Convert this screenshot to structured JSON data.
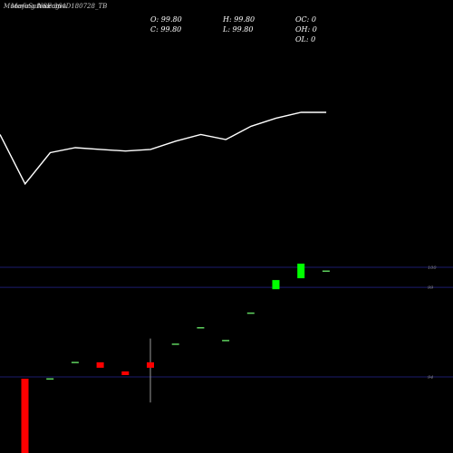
{
  "header": {
    "title_overlap": [
      "MunafaSutra.com",
      "Moving Averages",
      "NSE 364D180728_TB"
    ],
    "open": "O: 99.80",
    "high": "H: 99.80",
    "close": "C: 99.80",
    "low": "L: 99.80",
    "oc": "OC: 0",
    "oh": "OH: 0",
    "ol": "OL: 0"
  },
  "chart_data": [
    {
      "type": "line",
      "panel": "moving-average",
      "series": [
        {
          "values": [
            99.0,
            98.4,
            98.78,
            98.84,
            98.82,
            98.8,
            98.82,
            98.92,
            99.0,
            98.94,
            99.1,
            99.2,
            99.27,
            99.27
          ],
          "color": "#ffffff"
        }
      ]
    },
    {
      "type": "candlestick",
      "panel": "price",
      "y_tick_labels": [
        "100",
        "99",
        "94"
      ],
      "candles": [
        {
          "open": 93.9,
          "close": 92.0,
          "high": 93.9,
          "low": 92.0,
          "color": "red"
        },
        {
          "open": 93.9,
          "close": 93.9,
          "high": 93.9,
          "low": 93.9,
          "color": "green"
        },
        {
          "open": 94.8,
          "close": 94.8,
          "high": 94.8,
          "low": 94.8,
          "color": "green"
        },
        {
          "open": 94.8,
          "close": 94.5,
          "high": 94.8,
          "low": 94.5,
          "color": "red"
        },
        {
          "open": 94.3,
          "close": 94.1,
          "high": 94.3,
          "low": 94.1,
          "color": "red"
        },
        {
          "open": 94.8,
          "close": 94.5,
          "high": 96.1,
          "low": 92.6,
          "color": "red"
        },
        {
          "open": 95.8,
          "close": 95.8,
          "high": 95.8,
          "low": 95.8,
          "color": "green"
        },
        {
          "open": 96.7,
          "close": 96.7,
          "high": 96.7,
          "low": 96.7,
          "color": "green"
        },
        {
          "open": 96.0,
          "close": 96.0,
          "high": 96.0,
          "low": 96.0,
          "color": "green"
        },
        {
          "open": 97.5,
          "close": 97.5,
          "high": 97.5,
          "low": 97.5,
          "color": "green"
        },
        {
          "open": 98.8,
          "close": 99.3,
          "high": 99.3,
          "low": 98.8,
          "color": "green"
        },
        {
          "open": 99.4,
          "close": 100.2,
          "high": 100.2,
          "low": 99.4,
          "color": "green"
        },
        {
          "open": 99.8,
          "close": 99.8,
          "high": 99.8,
          "low": 99.8,
          "color": "green"
        }
      ]
    }
  ],
  "colors": {
    "background": "#000000",
    "ma_line": "#ffffff",
    "grid": "#1c1c6e",
    "up": "#00ff00",
    "down": "#ff0000",
    "up_thin": "#5fd35f",
    "wick": "#9a9a9a"
  }
}
